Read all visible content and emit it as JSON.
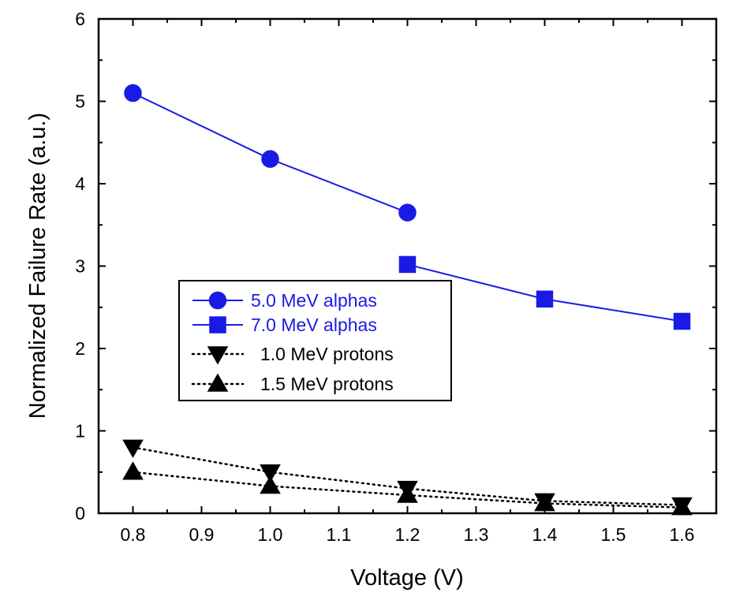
{
  "chart_data": {
    "type": "line",
    "xlabel": "Voltage (V)",
    "ylabel": "Normalized Failure Rate (a.u.)",
    "xlim": [
      0.75,
      1.65
    ],
    "ylim": [
      0,
      6
    ],
    "x_ticks": [
      "0.8",
      "0.9",
      "1.0",
      "1.1",
      "1.2",
      "1.3",
      "1.4",
      "1.5",
      "1.6"
    ],
    "y_ticks": [
      "0",
      "1",
      "2",
      "3",
      "4",
      "5",
      "6"
    ],
    "grid": false,
    "legend_position": "center-left",
    "series": [
      {
        "name": "5.0 MeV alphas",
        "marker": "circle",
        "line": "solid",
        "color": "#1a1ae6",
        "x": [
          0.8,
          1.0,
          1.2
        ],
        "y": [
          5.1,
          4.3,
          3.65
        ]
      },
      {
        "name": "7.0 MeV alphas",
        "marker": "square",
        "line": "solid",
        "color": "#1a1ae6",
        "x": [
          1.2,
          1.4,
          1.6
        ],
        "y": [
          3.02,
          2.6,
          2.33
        ]
      },
      {
        "name": "1.0 MeV protons",
        "marker": "triangle-down",
        "line": "dotted",
        "color": "#000000",
        "x": [
          0.8,
          1.0,
          1.2,
          1.4,
          1.6
        ],
        "y": [
          0.8,
          0.5,
          0.3,
          0.15,
          0.1
        ]
      },
      {
        "name": "1.5 MeV protons",
        "marker": "triangle-up",
        "line": "dotted",
        "color": "#000000",
        "x": [
          0.8,
          1.0,
          1.2,
          1.4,
          1.6
        ],
        "y": [
          0.5,
          0.33,
          0.22,
          0.12,
          0.07
        ]
      }
    ]
  }
}
